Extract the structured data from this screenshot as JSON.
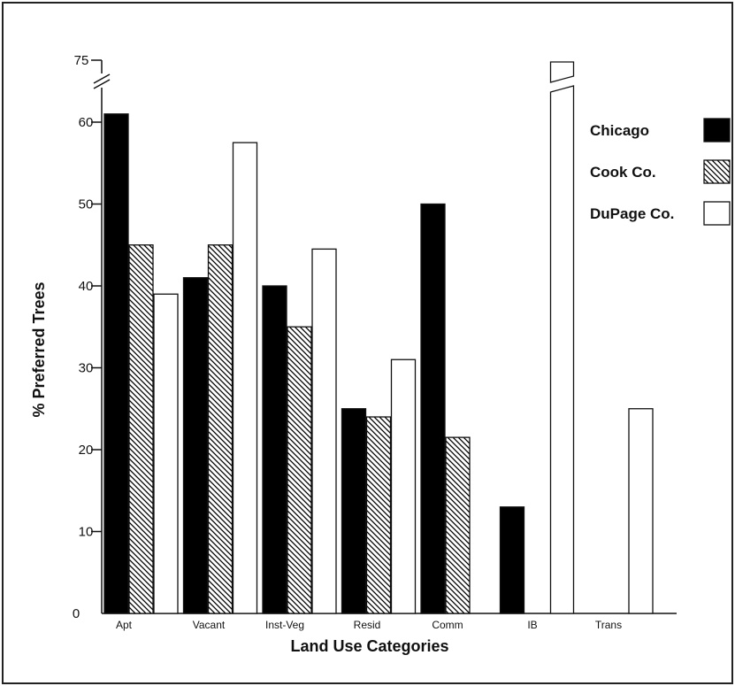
{
  "chart_data": {
    "type": "bar",
    "xlabel": "Land Use Categories",
    "ylabel": "% Preferred Trees",
    "ylim": [
      0,
      75
    ],
    "axis_break": "between 60 and 75",
    "yticks": [
      "0",
      "10",
      "20",
      "30",
      "40",
      "50",
      "60",
      "75"
    ],
    "categories": [
      "Apt",
      "Vacant",
      "Inst-Veg",
      "Resid",
      "Comm",
      "IB",
      "Trans"
    ],
    "series": [
      {
        "name": "Chicago",
        "pattern": "solid",
        "values": [
          61,
          41,
          40,
          25,
          50,
          13,
          null
        ]
      },
      {
        "name": "Cook Co.",
        "pattern": "hatched",
        "values": [
          45,
          45,
          35,
          24,
          21.5,
          null,
          null
        ]
      },
      {
        "name": "DuPage Co.",
        "pattern": "open",
        "values": [
          39,
          57.5,
          44.5,
          31,
          null,
          75,
          25
        ]
      }
    ],
    "grid": false,
    "legend_position": "right",
    "colors": {
      "solid": "#000000",
      "line": "#111111",
      "background": "#ffffff"
    }
  }
}
